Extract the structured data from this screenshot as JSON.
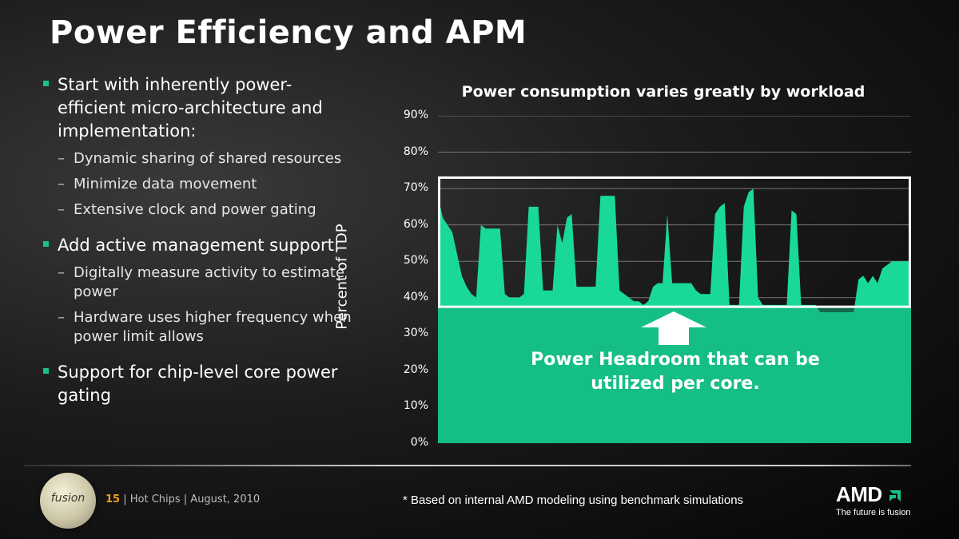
{
  "slide": {
    "title": "Power Efficiency and APM",
    "bullets": [
      {
        "text": "Start with inherently power-efficient micro-architecture and implementation:",
        "sub": [
          "Dynamic sharing of shared resources",
          "Minimize data movement",
          "Extensive clock and power gating"
        ]
      },
      {
        "text": "Add active management support:",
        "sub": [
          "Digitally measure activity to estimate power",
          "Hardware uses higher frequency when power limit allows"
        ]
      },
      {
        "text": "Support for chip-level core power gating",
        "sub": []
      }
    ]
  },
  "chart_data": {
    "type": "area",
    "title": "Power consumption varies greatly by workload",
    "ylabel": "Percent of TDP",
    "ylim": [
      0,
      90
    ],
    "yticks": [
      "90%",
      "80%",
      "70%",
      "60%",
      "50%",
      "40%",
      "30%",
      "20%",
      "10%",
      "0%"
    ],
    "x": [
      0,
      1,
      2,
      3,
      4,
      5,
      6,
      7,
      8,
      9,
      10,
      11,
      12,
      13,
      14,
      15,
      16,
      17,
      18,
      19,
      20,
      21,
      22,
      23,
      24,
      25,
      26,
      27,
      28,
      29,
      30,
      31,
      32,
      33,
      34,
      35,
      36,
      37,
      38,
      39,
      40,
      41,
      42,
      43,
      44,
      45,
      46,
      47,
      48,
      49,
      50,
      51,
      52,
      53,
      54,
      55,
      56,
      57,
      58,
      59,
      60,
      61,
      62,
      63,
      64,
      65,
      66,
      67,
      68,
      69,
      70,
      71,
      72,
      73,
      74,
      75,
      76,
      77,
      78,
      79,
      80,
      81,
      82,
      83,
      84,
      85,
      86,
      87,
      88,
      89,
      90,
      91,
      92,
      93,
      94,
      95,
      96,
      97,
      98,
      99
    ],
    "series": [
      {
        "values": [
          68,
          62,
          60,
          58,
          52,
          46,
          43,
          41,
          40,
          60,
          59,
          59,
          59,
          59,
          41,
          40,
          40,
          40,
          41,
          65,
          65,
          65,
          42,
          42,
          42,
          60,
          55,
          62,
          63,
          43,
          43,
          43,
          43,
          43,
          68,
          68,
          68,
          68,
          42,
          41,
          40,
          39,
          39,
          38,
          39,
          43,
          44,
          44,
          63,
          44,
          44,
          44,
          44,
          44,
          42,
          41,
          41,
          41,
          63,
          65,
          66,
          38,
          38,
          38,
          65,
          69,
          70,
          40,
          38,
          38,
          38,
          38,
          38,
          38,
          64,
          63,
          38,
          38,
          38,
          38,
          36,
          36,
          36,
          36,
          36,
          36,
          36,
          36,
          45,
          46,
          44,
          46,
          44,
          48,
          49,
          50,
          50,
          50,
          50,
          50
        ]
      }
    ],
    "headroom_band": [
      37.5,
      73
    ],
    "fill_color": "#19d99a",
    "annotation": "Power Headroom that can be utilized per core."
  },
  "footer": {
    "logo": "fusion",
    "page": "15",
    "event": "| Hot Chips | August, 2010",
    "note": "* Based on internal AMD modeling using benchmark simulations",
    "brand": "AMD",
    "tagline": "The future is fusion"
  }
}
